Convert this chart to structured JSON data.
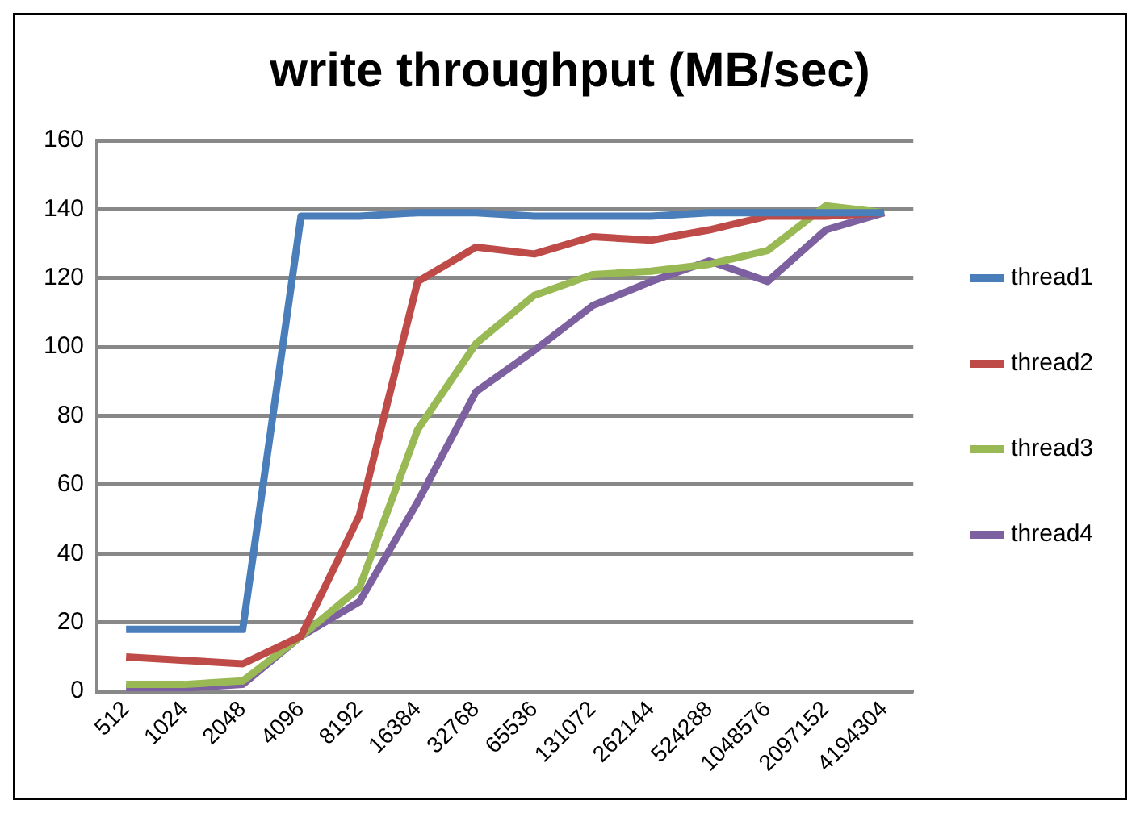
{
  "chart_data": {
    "type": "line",
    "title": "write throughput (MB/sec)",
    "categories": [
      "512",
      "1024",
      "2048",
      "4096",
      "8192",
      "16384",
      "32768",
      "65536",
      "131072",
      "262144",
      "524288",
      "1048576",
      "2097152",
      "4194304"
    ],
    "series": [
      {
        "name": "thread1",
        "color": "#4a7ebb",
        "values": [
          18,
          18,
          18,
          138,
          138,
          139,
          139,
          138,
          138,
          138,
          139,
          139,
          139,
          139
        ]
      },
      {
        "name": "thread2",
        "color": "#be4b48",
        "values": [
          10,
          9,
          8,
          16,
          51,
          119,
          129,
          127,
          132,
          131,
          134,
          138,
          138,
          139
        ]
      },
      {
        "name": "thread3",
        "color": "#98b954",
        "values": [
          2,
          2,
          3,
          16,
          30,
          76,
          101,
          115,
          121,
          122,
          124,
          128,
          141,
          139
        ]
      },
      {
        "name": "thread4",
        "color": "#7d60a0",
        "values": [
          1,
          1,
          2,
          16,
          26,
          55,
          87,
          99,
          112,
          119,
          125,
          119,
          134,
          139
        ]
      }
    ],
    "ylim": [
      0,
      160
    ],
    "yticks": [
      0,
      20,
      40,
      60,
      80,
      100,
      120,
      140,
      160
    ],
    "grid": "y",
    "legend": "right",
    "marker": "none",
    "line_style": "solid"
  }
}
